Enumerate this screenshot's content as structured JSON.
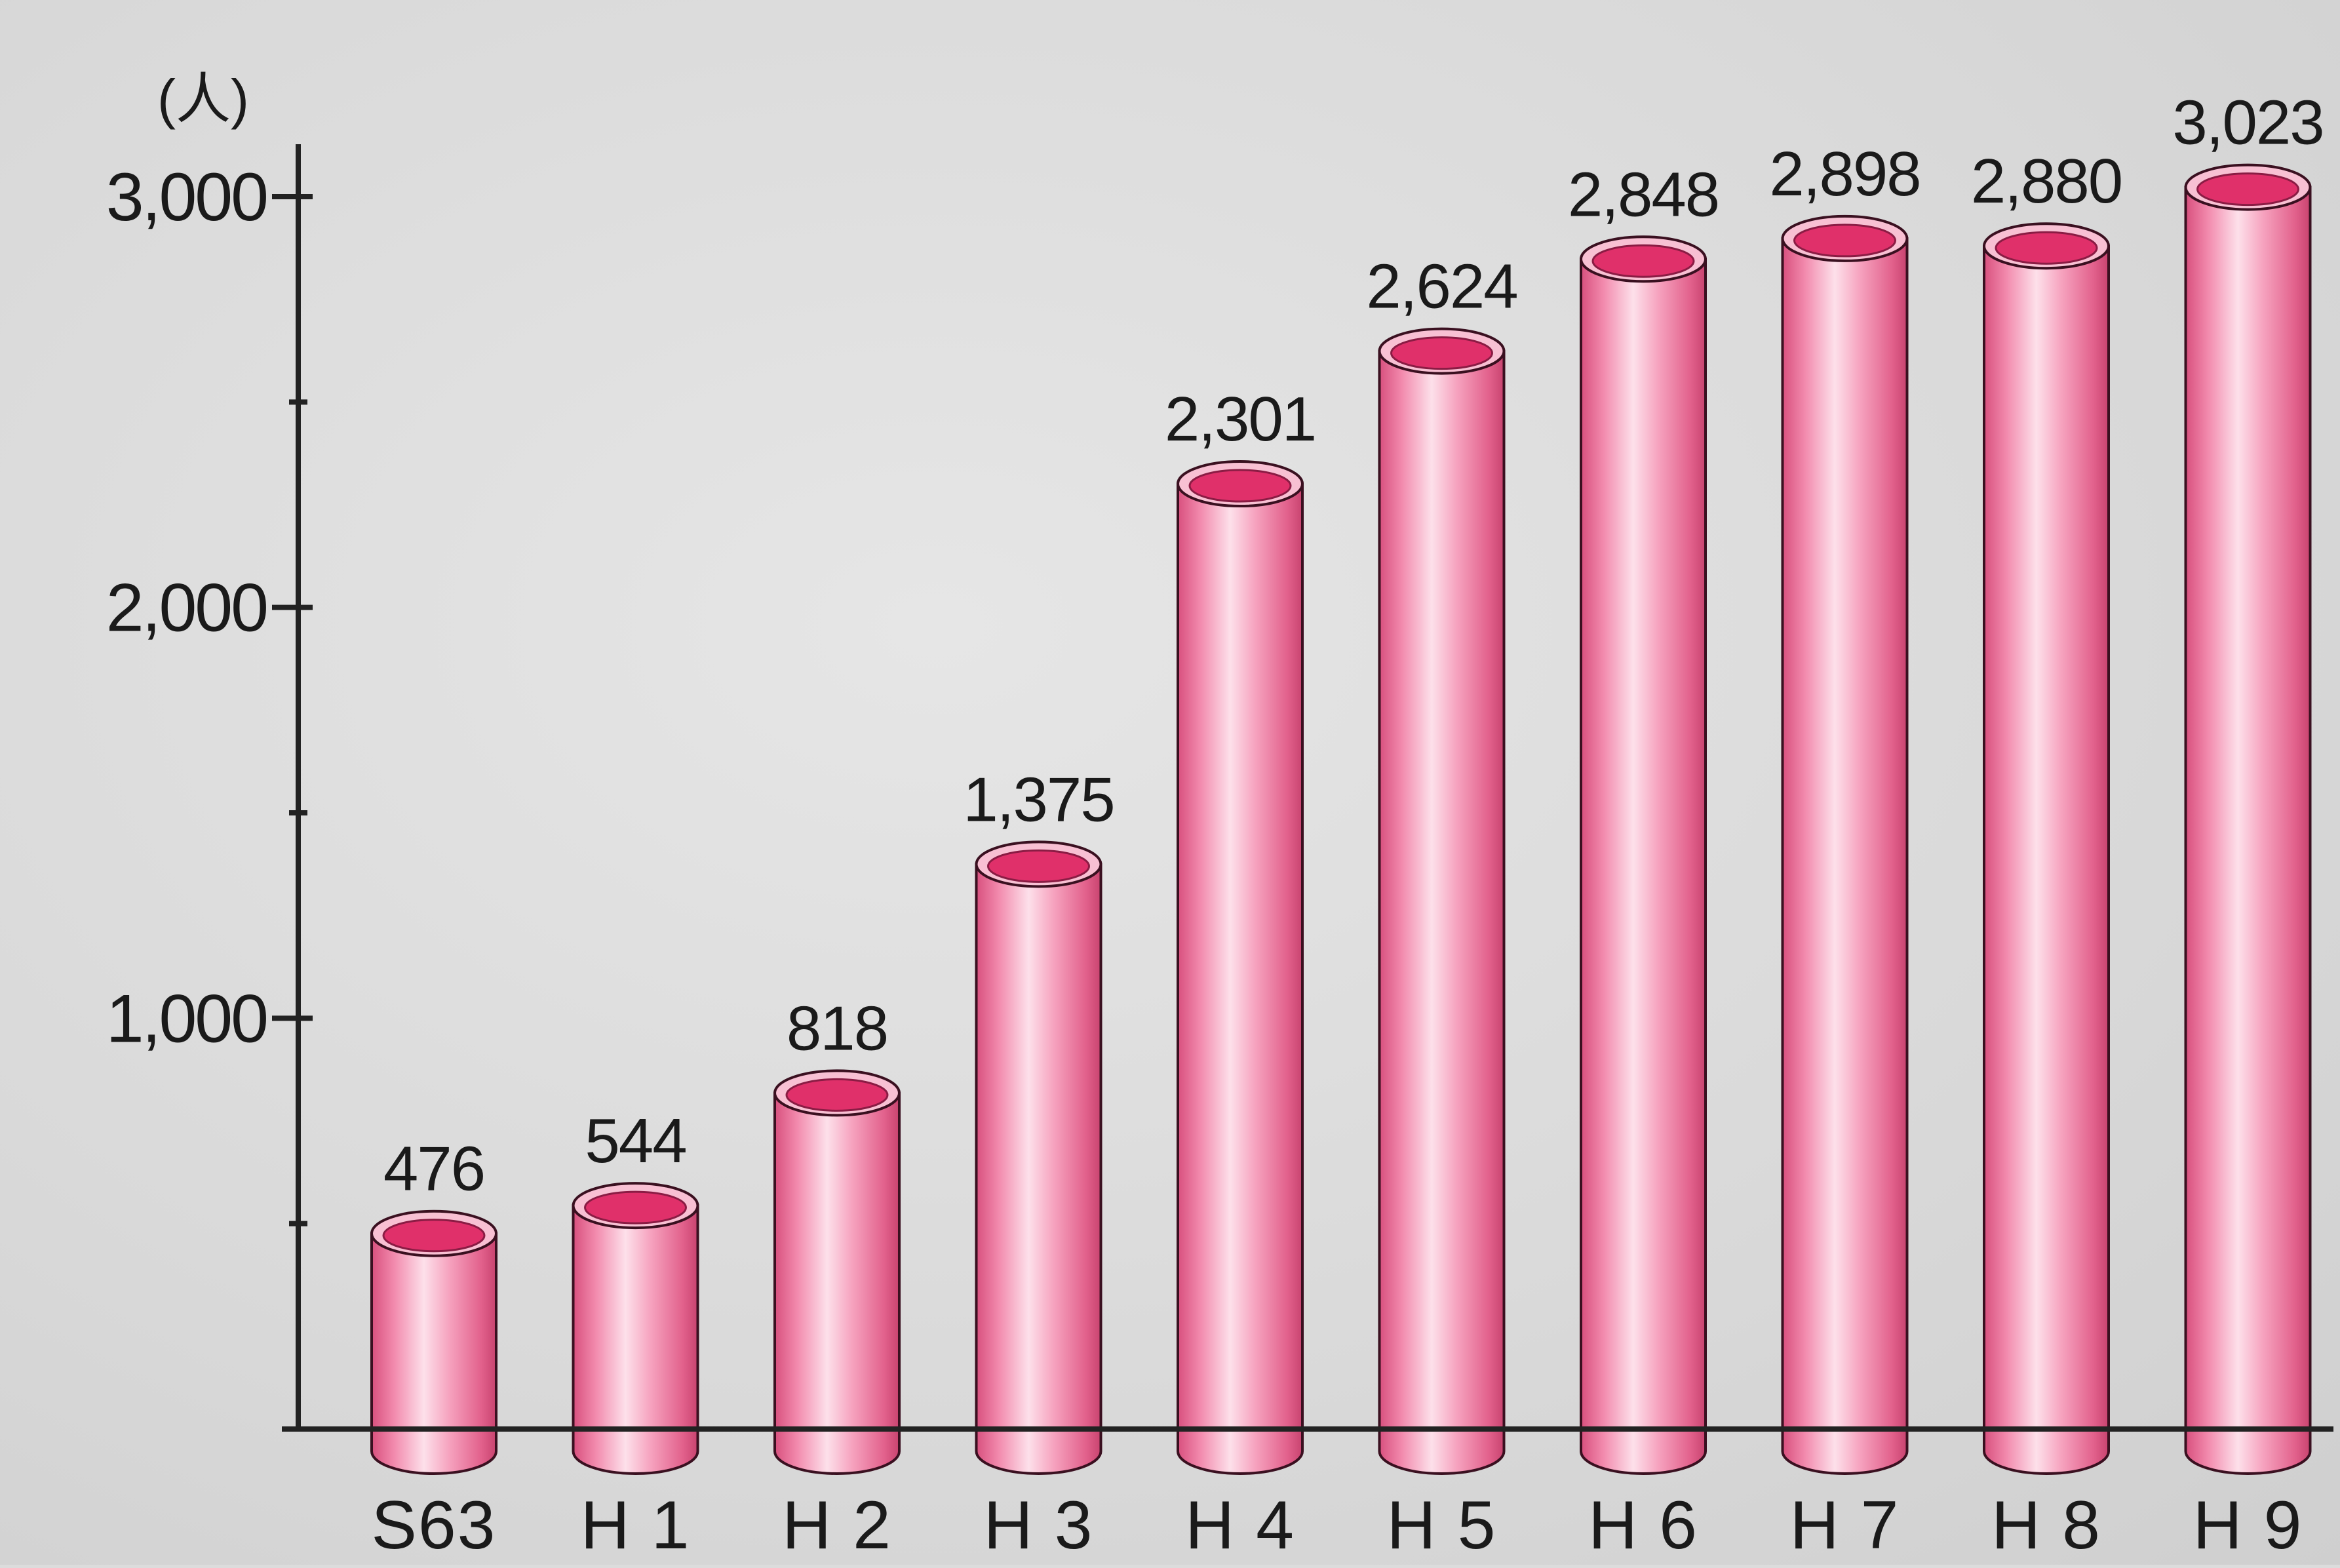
{
  "chart_data": {
    "type": "bar",
    "title": "",
    "xlabel": "",
    "ylabel": "",
    "unit_label": "(人)",
    "categories": [
      "S63",
      "H 1",
      "H 2",
      "H 3",
      "H 4",
      "H 5",
      "H 6",
      "H 7",
      "H 8",
      "H 9"
    ],
    "values": [
      476,
      544,
      818,
      1375,
      2301,
      2624,
      2848,
      2898,
      2880,
      3023
    ],
    "value_labels": [
      "476",
      "544",
      "818",
      "1,375",
      "2,301",
      "2,624",
      "2,848",
      "2,898",
      "2,880",
      "3,023"
    ],
    "ylim": [
      0,
      3000
    ],
    "y_ticks": [
      1000,
      2000,
      3000
    ],
    "y_tick_labels": [
      "1,000",
      "2,000",
      "3,000"
    ],
    "y_minor_ticks": [
      500,
      1500,
      2500
    ],
    "grid": false,
    "legend": "none",
    "colors": {
      "bar_body": "#f07aa0",
      "bar_light": "#fbd3e0",
      "bar_shadow": "#c8436f",
      "bar_top": "#e0306a",
      "bar_rim": "#f8c0d3",
      "axis": "#222222",
      "text": "#1a1a1a"
    }
  }
}
